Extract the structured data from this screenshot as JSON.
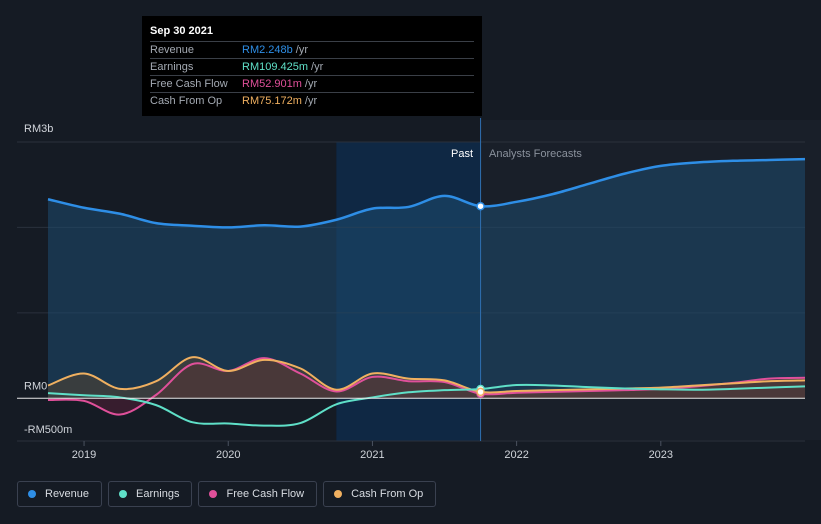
{
  "tooltip": {
    "date": "Sep 30 2021",
    "rows": [
      {
        "label": "Revenue",
        "value": "RM2.248b",
        "unit": "/yr",
        "color": "#2e8ee6"
      },
      {
        "label": "Earnings",
        "value": "RM109.425m",
        "unit": "/yr",
        "color": "#5fe0c8"
      },
      {
        "label": "Free Cash Flow",
        "value": "RM52.901m",
        "unit": "/yr",
        "color": "#e0509a"
      },
      {
        "label": "Cash From Op",
        "value": "RM75.172m",
        "unit": "/yr",
        "color": "#f0b060"
      }
    ]
  },
  "labels": {
    "past": "Past",
    "forecast": "Analysts Forecasts"
  },
  "legend": [
    {
      "label": "Revenue",
      "color": "#2e8ee6"
    },
    {
      "label": "Earnings",
      "color": "#5fe0c8"
    },
    {
      "label": "Free Cash Flow",
      "color": "#e0509a"
    },
    {
      "label": "Cash From Op",
      "color": "#f0b060"
    }
  ],
  "chart_data": {
    "type": "line",
    "title": "",
    "xlabel": "",
    "ylabel": "",
    "xlim": [
      2018.75,
      2024.0
    ],
    "ylim": [
      -500,
      3000
    ],
    "y_ticks": [
      {
        "value": 3000,
        "label": "RM3b"
      },
      {
        "value": 0,
        "label": "RM0"
      },
      {
        "value": -500,
        "label": "-RM500m"
      }
    ],
    "x_ticks": [
      {
        "value": 2019,
        "label": "2019"
      },
      {
        "value": 2020,
        "label": "2020"
      },
      {
        "value": 2021,
        "label": "2021"
      },
      {
        "value": 2022,
        "label": "2022"
      },
      {
        "value": 2023,
        "label": "2023"
      }
    ],
    "past_end": 2021.75,
    "highlight_start": 2020.75,
    "series": [
      {
        "name": "Revenue",
        "color": "#2e8ee6",
        "fill": true,
        "x": [
          2018.75,
          2019.0,
          2019.25,
          2019.5,
          2019.75,
          2020.0,
          2020.25,
          2020.5,
          2020.75,
          2021.0,
          2021.25,
          2021.5,
          2021.75,
          2022.0,
          2022.25,
          2022.5,
          2022.75,
          2023.0,
          2023.25,
          2023.5,
          2023.75,
          2024.0
        ],
        "values": [
          2330,
          2230,
          2160,
          2050,
          2020,
          2000,
          2025,
          2010,
          2090,
          2220,
          2240,
          2370,
          2248,
          2300,
          2390,
          2510,
          2630,
          2720,
          2760,
          2780,
          2790,
          2800
        ]
      },
      {
        "name": "Earnings",
        "color": "#5fe0c8",
        "fill": false,
        "x": [
          2018.75,
          2019.0,
          2019.25,
          2019.5,
          2019.75,
          2020.0,
          2020.25,
          2020.5,
          2020.75,
          2021.0,
          2021.25,
          2021.5,
          2021.75,
          2022.0,
          2022.25,
          2022.5,
          2022.75,
          2023.0,
          2023.25,
          2023.5,
          2023.75,
          2024.0
        ],
        "values": [
          60,
          35,
          10,
          -80,
          -280,
          -295,
          -320,
          -290,
          -70,
          10,
          70,
          95,
          109,
          155,
          150,
          130,
          115,
          105,
          100,
          110,
          125,
          140
        ]
      },
      {
        "name": "Free Cash Flow",
        "color": "#e0509a",
        "fill": true,
        "x": [
          2018.75,
          2019.0,
          2019.25,
          2019.5,
          2019.75,
          2020.0,
          2020.25,
          2020.5,
          2020.75,
          2021.0,
          2021.25,
          2021.5,
          2021.75,
          2022.0,
          2022.25,
          2022.5,
          2022.75,
          2023.0,
          2023.25,
          2023.5,
          2023.75,
          2024.0
        ],
        "values": [
          -20,
          -30,
          -190,
          40,
          400,
          320,
          470,
          290,
          80,
          250,
          200,
          190,
          53,
          65,
          75,
          85,
          95,
          110,
          140,
          180,
          230,
          240
        ]
      },
      {
        "name": "Cash From Op",
        "color": "#f0b060",
        "fill": true,
        "x": [
          2018.75,
          2019.0,
          2019.25,
          2019.5,
          2019.75,
          2020.0,
          2020.25,
          2020.5,
          2020.75,
          2021.0,
          2021.25,
          2021.5,
          2021.75,
          2022.0,
          2022.25,
          2022.5,
          2022.75,
          2023.0,
          2023.25,
          2023.5,
          2023.75,
          2024.0
        ],
        "values": [
          150,
          290,
          110,
          200,
          480,
          320,
          450,
          350,
          100,
          290,
          230,
          210,
          75,
          85,
          95,
          105,
          115,
          125,
          150,
          175,
          200,
          210
        ]
      }
    ]
  }
}
